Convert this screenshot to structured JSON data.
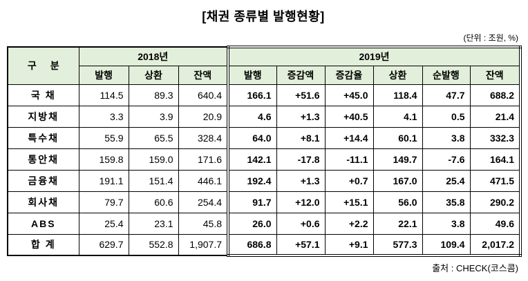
{
  "title": "[채권 종류별 발행현황]",
  "unit_note": "(단위 : 조원, %)",
  "source_note": "출처 : CHECK(코스콤)",
  "table": {
    "col_group_label": "구 분",
    "groups": [
      {
        "label": "2018년",
        "columns": [
          "발행",
          "상환",
          "잔액"
        ]
      },
      {
        "label": "2019년",
        "columns": [
          "발행",
          "증감액",
          "증감율",
          "상환",
          "순발행",
          "잔액"
        ]
      }
    ],
    "rows": [
      {
        "label": "국 채",
        "y2018": [
          "114.5",
          "89.3",
          "640.4"
        ],
        "y2019": [
          "166.1",
          "+51.6",
          "+45.0",
          "118.4",
          "47.7",
          "688.2"
        ]
      },
      {
        "label": "지방채",
        "y2018": [
          "3.3",
          "3.9",
          "20.9"
        ],
        "y2019": [
          "4.6",
          "+1.3",
          "+40.5",
          "4.1",
          "0.5",
          "21.4"
        ]
      },
      {
        "label": "특수채",
        "y2018": [
          "55.9",
          "65.5",
          "328.4"
        ],
        "y2019": [
          "64.0",
          "+8.1",
          "+14.4",
          "60.1",
          "3.8",
          "332.3"
        ]
      },
      {
        "label": "통안채",
        "y2018": [
          "159.8",
          "159.0",
          "171.6"
        ],
        "y2019": [
          "142.1",
          "-17.8",
          "-11.1",
          "149.7",
          "-7.6",
          "164.1"
        ]
      },
      {
        "label": "금융채",
        "y2018": [
          "191.1",
          "151.4",
          "446.1"
        ],
        "y2019": [
          "192.4",
          "+1.3",
          "+0.7",
          "167.0",
          "25.4",
          "471.5"
        ]
      },
      {
        "label": "회사채",
        "y2018": [
          "79.7",
          "60.6",
          "254.4"
        ],
        "y2019": [
          "91.7",
          "+12.0",
          "+15.1",
          "56.0",
          "35.8",
          "290.2"
        ]
      },
      {
        "label": "ABS",
        "y2018": [
          "25.4",
          "23.1",
          "45.8"
        ],
        "y2019": [
          "26.0",
          "+0.6",
          "+2.2",
          "22.1",
          "3.8",
          "49.6"
        ]
      },
      {
        "label": "합 계",
        "y2018": [
          "629.7",
          "552.8",
          "1,907.7"
        ],
        "y2019": [
          "686.8",
          "+57.1",
          "+9.1",
          "577.3",
          "109.4",
          "2,017.2"
        ]
      }
    ]
  },
  "colors": {
    "header_bg": "#e2efda",
    "border": "#000000"
  }
}
